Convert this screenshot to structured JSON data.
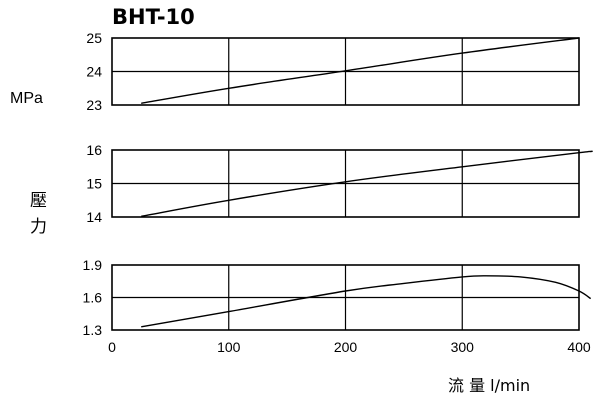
{
  "chart_data": {
    "title": "BHT-10",
    "unit_label": "MPa",
    "ylabel_chars": [
      "壓",
      "力"
    ],
    "xlabel": "流 量 l/min",
    "xlim": [
      0,
      400
    ],
    "x_ticks": [
      "0",
      "100",
      "200",
      "300",
      "400"
    ],
    "grid": true,
    "charts": [
      {
        "type": "line",
        "ylim": [
          23,
          25
        ],
        "y_ticks": [
          "23",
          "24",
          "25"
        ],
        "series": [
          {
            "x": [
              25,
              100,
              200,
              300,
              400
            ],
            "y": [
              23.05,
              23.5,
              24.02,
              24.55,
              25.0
            ]
          }
        ]
      },
      {
        "type": "line",
        "ylim": [
          14,
          16
        ],
        "y_ticks": [
          "14",
          "15",
          "16"
        ],
        "series": [
          {
            "x": [
              25,
              100,
              200,
              300,
              400,
              410
            ],
            "y": [
              14.02,
              14.5,
              15.05,
              15.5,
              15.92,
              15.95
            ]
          }
        ]
      },
      {
        "type": "line",
        "ylim": [
          1.3,
          1.9
        ],
        "y_ticks": [
          "1.3",
          "1.6",
          "1.9"
        ],
        "y_tick_values": [
          1.3,
          1.6,
          1.9
        ],
        "series": [
          {
            "x": [
              25,
              100,
              200,
              250,
              300,
              320,
              350,
              380,
              400,
              410
            ],
            "y": [
              1.33,
              1.47,
              1.66,
              1.73,
              1.79,
              1.8,
              1.79,
              1.74,
              1.66,
              1.59
            ]
          }
        ]
      }
    ]
  }
}
